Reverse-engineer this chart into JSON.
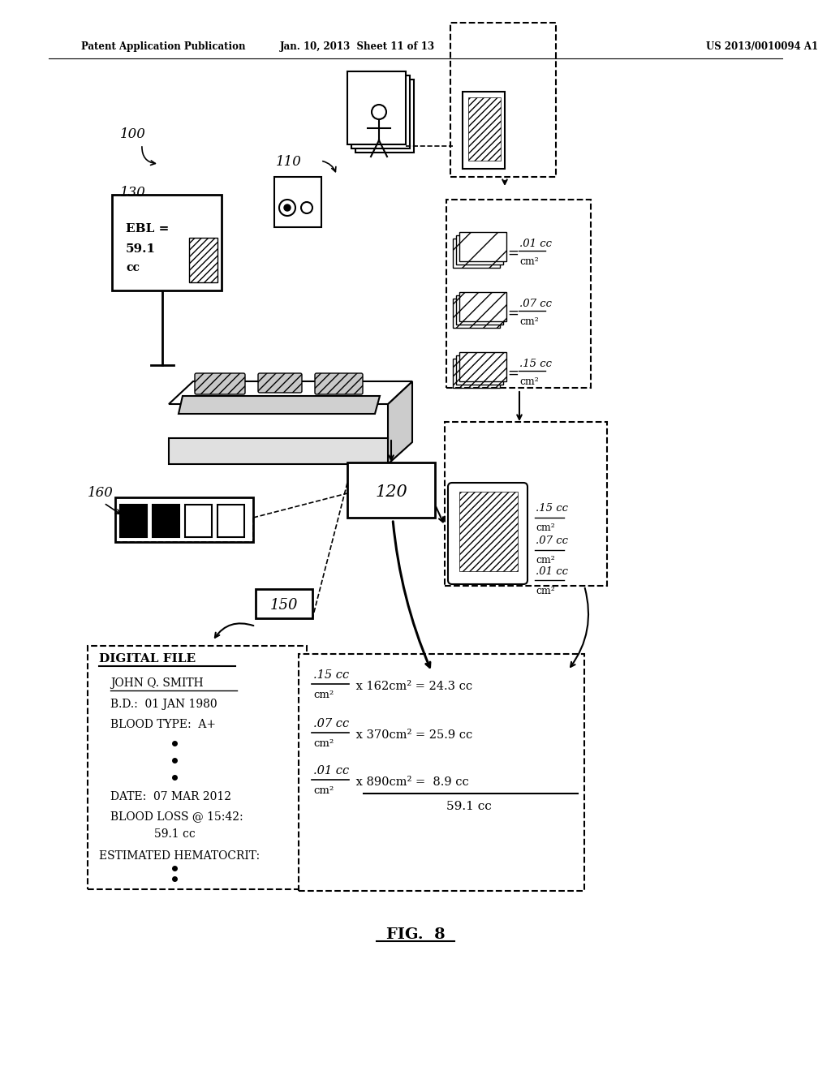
{
  "bg_color": "#ffffff",
  "header_left": "Patent Application Publication",
  "header_center": "Jan. 10, 2013  Sheet 11 of 13",
  "header_right": "US 2013/0010094 A1",
  "fig_label": "FIG.  8",
  "label_100": "100",
  "label_110": "110",
  "label_120": "120",
  "label_130": "130",
  "label_150": "150",
  "label_160": "160",
  "ebl_lines": [
    "EBL =",
    "59.1",
    "cc"
  ],
  "df_title": "DIGITAL FILE",
  "df_name": "JOHN Q. SMITH",
  "df_bd": "B.D.:  01 JAN 1980",
  "df_blood_type": "BLOOD TYPE:  A+",
  "df_date": "DATE:  07 MAR 2012",
  "df_blood_loss": "BLOOD LOSS @ 15:42:",
  "df_blood_val": "59.1 cc",
  "df_hema": "ESTIMATED HEMATOCRIT:",
  "calc_prefix": [
    ".15 cc",
    ".07 cc",
    ".01 cc"
  ],
  "calc_denom": "cm²",
  "calc_rest": [
    " x 162cm² = 24.3 cc",
    " x 370cm² = 25.9 cc",
    " x 890cm² =  8.9 cc"
  ],
  "calc_total": "59.1 cc",
  "density_vals_top": [
    ".01 cc",
    ".07 cc",
    ".15 cc"
  ],
  "density_vals_lower": [
    ".15 cc",
    ".07 cc",
    ".01 cc"
  ]
}
